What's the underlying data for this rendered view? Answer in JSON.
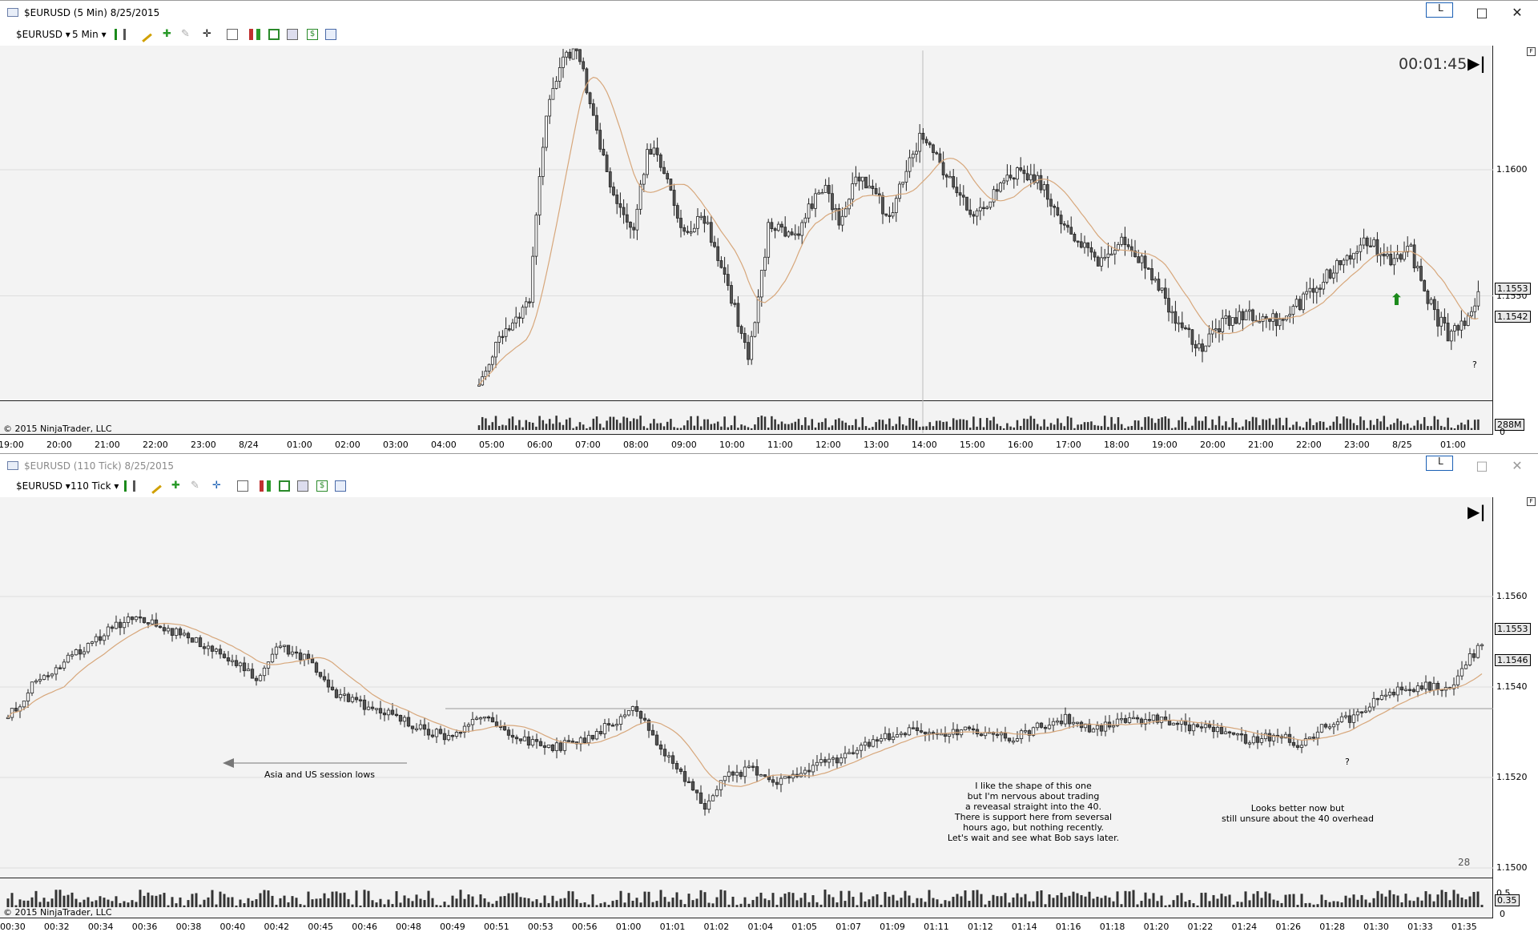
{
  "top_window": {
    "title": "$EURUSD (5 Min)  8/25/2015",
    "minimize_label": "L",
    "maximize_icon": "□",
    "close_icon": "✕",
    "toolbar": {
      "instrument": "$EURUSD",
      "interval": "5 Min"
    },
    "countdown": "00:01:45",
    "price_labels": [
      {
        "text": "1.1600",
        "price": 1.16
      },
      {
        "text": "1.1550",
        "price": 1.155
      }
    ],
    "boxed_labels": [
      {
        "text": "1.1553",
        "price": 1.1553
      },
      {
        "text": "1.1542",
        "price": 1.1542
      }
    ],
    "volume_label": "288M",
    "volume_zero": "0",
    "copyright": "© 2015 NinjaTrader, LLC",
    "time_labels": [
      "19:00",
      "20:00",
      "21:00",
      "22:00",
      "23:00",
      "8/24",
      "01:00",
      "02:00",
      "03:00",
      "04:00",
      "05:00",
      "06:00",
      "07:00",
      "08:00",
      "09:00",
      "10:00",
      "11:00",
      "12:00",
      "13:00",
      "14:00",
      "15:00",
      "16:00",
      "17:00",
      "18:00",
      "19:00",
      "20:00",
      "21:00",
      "22:00",
      "23:00",
      "8/25",
      "01:00"
    ],
    "question_mark": "?",
    "arrow_color": "#1b8a1b"
  },
  "bottom_window": {
    "title": "$EURUSD (110 Tick)  8/25/2015",
    "minimize_label": "L",
    "maximize_icon": "□",
    "close_icon": "✕",
    "toolbar": {
      "instrument": "$EURUSD",
      "interval": "110 Tick"
    },
    "price_labels": [
      {
        "text": "1.1560",
        "price": 1.156
      },
      {
        "text": "1.1540",
        "price": 1.154
      },
      {
        "text": "1.1520",
        "price": 1.152
      },
      {
        "text": "1.1500",
        "price": 1.15
      }
    ],
    "boxed_labels": [
      {
        "text": "1.1553",
        "price": 1.1553
      },
      {
        "text": "1.1546",
        "price": 1.1546
      }
    ],
    "volume_labels": [
      "0.5",
      "0.35",
      "0"
    ],
    "copyright": "© 2015 NinjaTrader, LLC",
    "time_labels": [
      "00:30",
      "00:32",
      "00:34",
      "00:36",
      "00:38",
      "00:40",
      "00:42",
      "00:45",
      "00:46",
      "00:48",
      "00:49",
      "00:51",
      "00:53",
      "00:56",
      "01:00",
      "01:01",
      "01:02",
      "01:04",
      "01:05",
      "01:07",
      "01:09",
      "01:11",
      "01:12",
      "01:14",
      "01:16",
      "01:18",
      "01:20",
      "01:22",
      "01:24",
      "01:26",
      "01:28",
      "01:30",
      "01:33",
      "01:35"
    ],
    "annotation_asia": "Asia and US session lows",
    "annotation_main": "I like the shape of this one\nbut I'm nervous about trading\na reveasal straight into the 40.\nThere is support here from seversal\nhours ago, but nothing recently.\nLet's wait and see what Bob says later.",
    "annotation_right": "Looks better now but\nstill unsure about the 40 overhead",
    "question_mark": "?",
    "bar_count": "28"
  },
  "colors": {
    "plot_bg": "#f3f3f3",
    "candle_up": "#ffffff",
    "candle_down": "#555555",
    "sma": "#d7a77b",
    "grid": "#dedede"
  }
}
